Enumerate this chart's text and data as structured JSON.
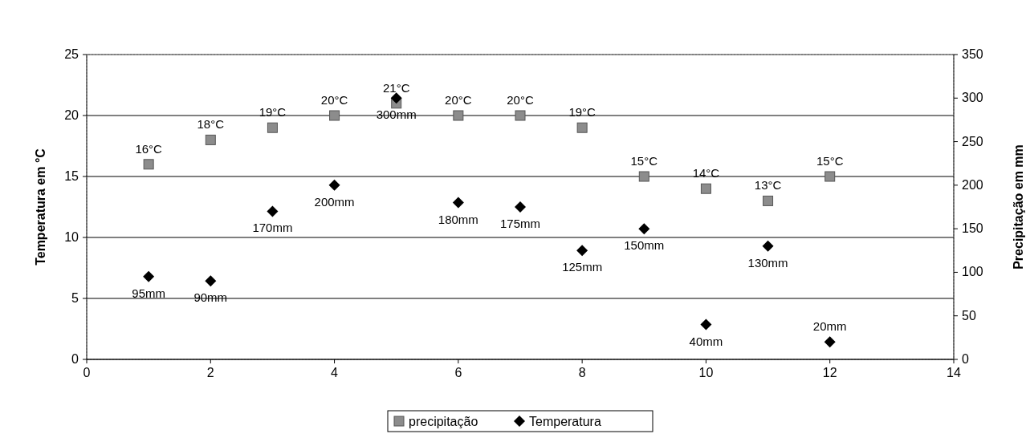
{
  "chart_data": {
    "type": "scatter",
    "ylabel": "Temperatura em °C",
    "y2label": "Precipitação em mm",
    "x": [
      1,
      2,
      3,
      4,
      5,
      6,
      7,
      8,
      9,
      10,
      11,
      12
    ],
    "xlim": [
      0,
      14
    ],
    "xticks": [
      0,
      2,
      4,
      6,
      8,
      10,
      12,
      14
    ],
    "ylim": [
      0,
      25
    ],
    "yticks": [
      0,
      5,
      10,
      15,
      20,
      25
    ],
    "y2lim": [
      0,
      350
    ],
    "y2ticks": [
      0,
      50,
      100,
      150,
      200,
      250,
      300,
      350
    ],
    "grid": "y",
    "legend": "bottom",
    "series": [
      {
        "name": "precipitação",
        "color": "#8c8c8c",
        "marker": "square",
        "values": [
          16,
          18,
          19,
          20,
          21,
          20,
          20,
          19,
          15,
          14,
          13,
          15
        ],
        "value_labels": [
          "16°C",
          "18°C",
          "19°C",
          "20°C",
          "21°C",
          "20°C",
          "20°C",
          "19°C",
          "15°C",
          "14°C",
          "13°C",
          "15°C"
        ]
      },
      {
        "name": "Temperatura",
        "color": "#000000",
        "marker": "diamond",
        "axis": "y2",
        "values": [
          95,
          90,
          170,
          200,
          300,
          180,
          175,
          125,
          150,
          40,
          130,
          20
        ],
        "value_labels": [
          "95mm",
          "90mm",
          "170mm",
          "200mm",
          "300mm",
          "180mm",
          "175mm",
          "125mm",
          "150mm",
          "40mm",
          "130mm",
          "20mm"
        ]
      }
    ]
  }
}
